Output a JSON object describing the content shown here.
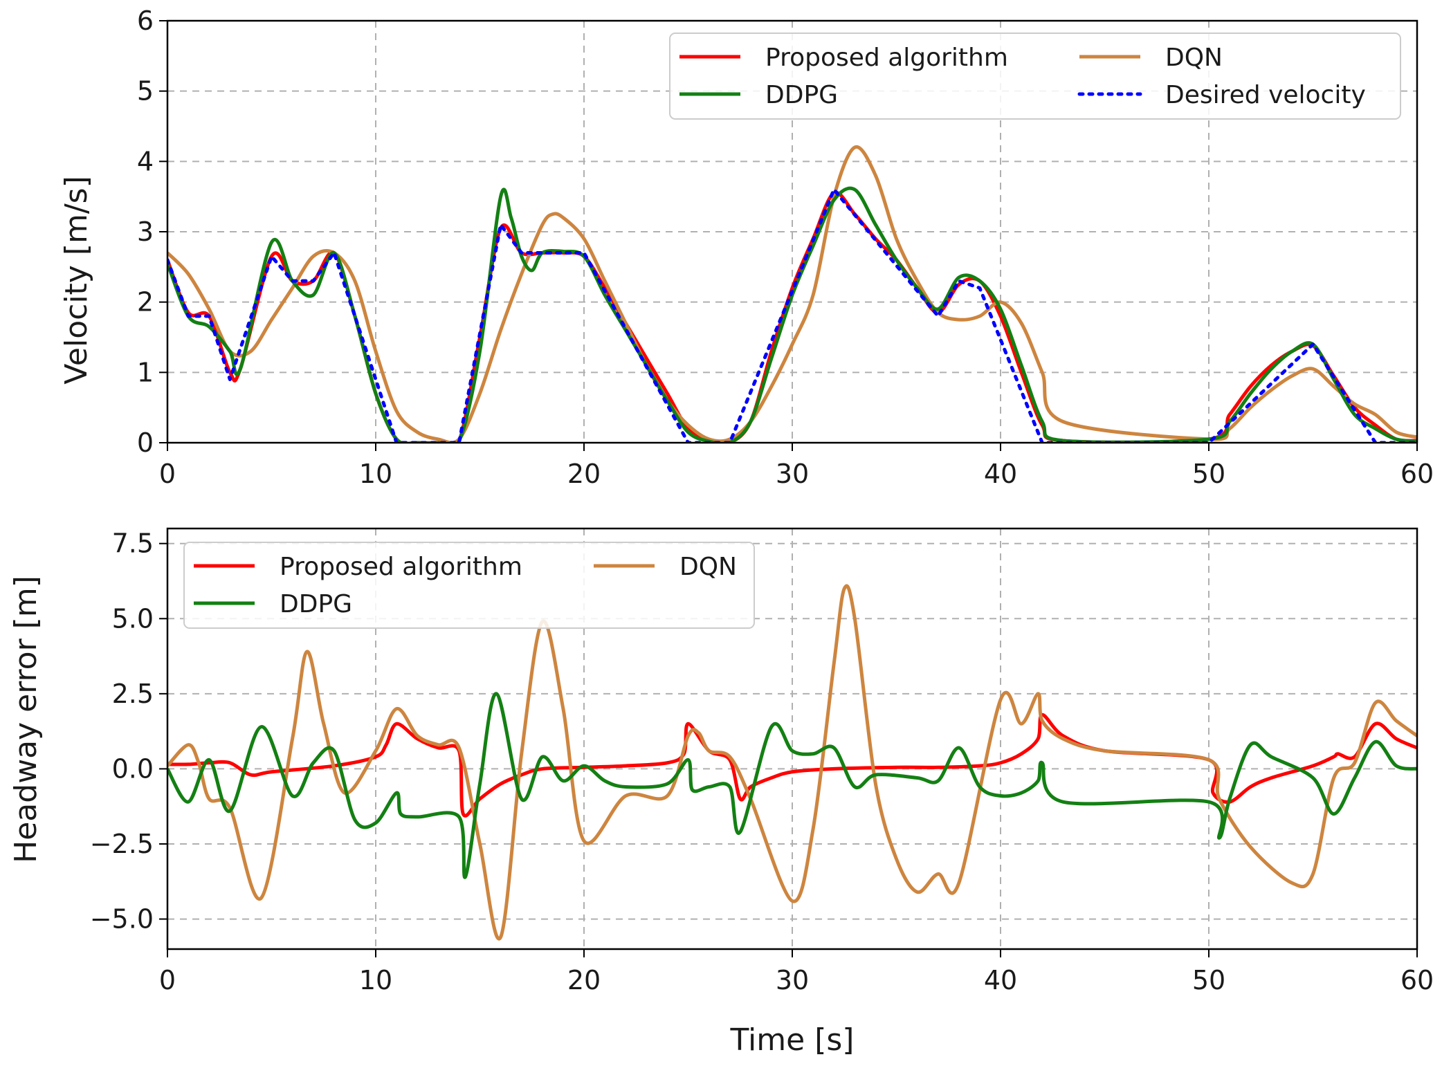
{
  "chart_data": [
    {
      "type": "line",
      "ylabel": "Velocity [m/s]",
      "xlabel": "",
      "xlim": [
        0,
        60
      ],
      "ylim": [
        0,
        6
      ],
      "xticks": [
        "0",
        "10",
        "20",
        "30",
        "40",
        "50",
        "60"
      ],
      "yticks": [
        "0",
        "1",
        "2",
        "3",
        "4",
        "5",
        "6"
      ],
      "grid": true,
      "legend_position": "top-right",
      "series": [
        {
          "name": "Proposed algorithm",
          "color": "#ff0000",
          "style": "solid",
          "x": [
            0,
            1,
            2,
            3,
            3.5,
            5,
            6,
            7,
            8,
            9,
            10,
            11,
            12,
            13,
            14,
            15,
            16,
            17,
            18,
            19,
            20,
            21,
            22,
            23,
            24,
            25,
            26,
            27,
            28,
            29,
            30,
            31,
            32,
            33,
            34,
            35,
            36,
            37,
            38,
            39,
            40,
            41,
            42,
            43,
            50,
            51,
            52,
            53,
            54,
            55,
            56,
            57,
            58,
            59,
            60
          ],
          "y": [
            2.6,
            1.85,
            1.8,
            1.0,
            1.05,
            2.65,
            2.3,
            2.3,
            2.7,
            1.8,
            0.7,
            0.05,
            0,
            0,
            0.02,
            1.5,
            3.05,
            2.7,
            2.7,
            2.7,
            2.65,
            2.2,
            1.7,
            1.2,
            0.7,
            0.2,
            0.03,
            0,
            0.3,
            1.3,
            2.2,
            2.9,
            3.55,
            3.25,
            2.9,
            2.6,
            2.2,
            1.85,
            2.25,
            2.3,
            1.8,
            1.0,
            0.25,
            0.03,
            0.05,
            0.4,
            0.8,
            1.1,
            1.3,
            1.38,
            0.95,
            0.5,
            0.25,
            0.05,
            0.03
          ]
        },
        {
          "name": "DQN",
          "color": "#cd853f",
          "style": "solid",
          "x": [
            0,
            1,
            2,
            3,
            4,
            5,
            6,
            7,
            8,
            9,
            10,
            11,
            12,
            13,
            14,
            15,
            16,
            17,
            18,
            18.5,
            19,
            20,
            21,
            22,
            23,
            24,
            25,
            26,
            27,
            28,
            29,
            30,
            31,
            32,
            33,
            34,
            35,
            36,
            37,
            38,
            39,
            40,
            41,
            42,
            43,
            50,
            51,
            52,
            53,
            54,
            55,
            56,
            57,
            58,
            59,
            60
          ],
          "y": [
            2.7,
            2.4,
            1.9,
            1.3,
            1.3,
            1.75,
            2.2,
            2.65,
            2.7,
            2.3,
            1.3,
            0.45,
            0.15,
            0.05,
            0.05,
            0.7,
            1.6,
            2.4,
            3.1,
            3.25,
            3.2,
            2.9,
            2.3,
            1.7,
            1.1,
            0.6,
            0.25,
            0.05,
            0.05,
            0.3,
            0.8,
            1.4,
            2.1,
            3.5,
            4.2,
            3.8,
            2.9,
            2.3,
            1.85,
            1.75,
            1.8,
            2.0,
            1.7,
            1.0,
            0.3,
            0.05,
            0.2,
            0.5,
            0.75,
            0.95,
            1.05,
            0.8,
            0.55,
            0.4,
            0.15,
            0.08
          ]
        },
        {
          "name": "DDPG",
          "color": "#138013",
          "style": "solid",
          "x": [
            0,
            1,
            2,
            3,
            3.5,
            5,
            6,
            7,
            8,
            9,
            10,
            11,
            12,
            13,
            14,
            15,
            16,
            16.5,
            17,
            17.5,
            18,
            19,
            20,
            21,
            22,
            23,
            24,
            25,
            26,
            27,
            28,
            29,
            30,
            31,
            32,
            33,
            34,
            35,
            36,
            37,
            38,
            39,
            40,
            41,
            42,
            43,
            50,
            51,
            52,
            53,
            54,
            55,
            56,
            57,
            58,
            59,
            60
          ],
          "y": [
            2.55,
            1.8,
            1.65,
            1.3,
            1.05,
            2.85,
            2.3,
            2.1,
            2.7,
            1.8,
            0.7,
            0.05,
            0,
            0,
            0.02,
            1.3,
            3.5,
            3.2,
            2.65,
            2.45,
            2.7,
            2.72,
            2.65,
            2.1,
            1.6,
            1.1,
            0.6,
            0.15,
            0.02,
            0,
            0.3,
            1.2,
            2.1,
            2.8,
            3.45,
            3.6,
            3.1,
            2.6,
            2.2,
            1.9,
            2.35,
            2.3,
            1.9,
            1.1,
            0.3,
            0.03,
            0.05,
            0.3,
            0.7,
            1.05,
            1.3,
            1.4,
            0.9,
            0.4,
            0.2,
            0.05,
            0.02
          ]
        },
        {
          "name": "Desired velocity",
          "color": "#0000ff",
          "style": "dotted",
          "x": [
            0,
            1,
            2,
            3,
            5,
            6,
            7,
            8,
            11,
            14,
            16,
            17,
            20,
            25,
            27,
            32,
            37,
            38,
            39,
            42,
            50,
            55,
            58,
            60
          ],
          "y": [
            2.6,
            1.8,
            1.8,
            0.9,
            2.65,
            2.3,
            2.3,
            2.7,
            0,
            0,
            3.1,
            2.7,
            2.7,
            0,
            0,
            3.6,
            1.8,
            2.3,
            2.2,
            0,
            0,
            1.4,
            0,
            0
          ]
        }
      ]
    },
    {
      "type": "line",
      "ylabel": "Headway error [m]",
      "xlabel": "Time [s]",
      "xlim": [
        0,
        60
      ],
      "ylim": [
        -6,
        8
      ],
      "xticks": [
        "0",
        "10",
        "20",
        "30",
        "40",
        "50",
        "60"
      ],
      "yticks": [
        "7.5",
        "5.0",
        "2.5",
        "0.0",
        "−2.5",
        "−5.0"
      ],
      "ytick_values": [
        7.5,
        5.0,
        2.5,
        0.0,
        -2.5,
        -5.0
      ],
      "grid": true,
      "legend_position": "top-left",
      "series": [
        {
          "name": "Proposed algorithm",
          "color": "#ff0000",
          "style": "solid",
          "x": [
            0,
            1,
            2,
            3,
            4,
            5,
            8,
            10,
            10.5,
            11,
            12,
            13,
            14,
            14.2,
            15,
            16,
            17,
            18,
            20,
            22,
            24,
            24.8,
            25,
            26,
            27,
            27.5,
            28,
            29,
            30,
            32,
            35,
            37,
            39,
            40,
            41,
            41.8,
            42,
            43,
            45,
            50,
            50.2,
            51,
            52,
            53,
            55,
            56,
            56.2,
            57,
            58,
            59,
            60
          ],
          "y": [
            0.15,
            0.15,
            0.2,
            0.2,
            -0.2,
            -0.1,
            0.1,
            0.4,
            0.8,
            1.5,
            1.0,
            0.7,
            0.6,
            -1.5,
            -1.0,
            -0.5,
            -0.2,
            0,
            0.05,
            0.1,
            0.2,
            0.5,
            1.5,
            0.6,
            0.3,
            -1.0,
            -0.6,
            -0.3,
            -0.1,
            0.0,
            0.05,
            0.05,
            0.1,
            0.2,
            0.5,
            1.0,
            1.8,
            1.1,
            0.6,
            0.3,
            -0.8,
            -1.1,
            -0.6,
            -0.3,
            0.1,
            0.4,
            0.5,
            0.4,
            1.5,
            1.0,
            0.7
          ]
        },
        {
          "name": "DQN",
          "color": "#cd853f",
          "style": "solid",
          "x": [
            0,
            1,
            1.5,
            2,
            3,
            4.5,
            6,
            6.7,
            7.5,
            8.5,
            10,
            11,
            12,
            13,
            14,
            15,
            16,
            17,
            18,
            19,
            20,
            22,
            24,
            25,
            25.5,
            26,
            27,
            28,
            30,
            31,
            32,
            32.5,
            33,
            34,
            35,
            36,
            37,
            38,
            40,
            41,
            41.8,
            42,
            43,
            45,
            50,
            50.5,
            52,
            54,
            55,
            56,
            57,
            58,
            59,
            60
          ],
          "y": [
            0.1,
            0.8,
            0.2,
            -1.0,
            -1.3,
            -4.3,
            1.0,
            3.9,
            1.5,
            -0.8,
            0.6,
            2.0,
            1.1,
            0.8,
            0.7,
            -2.5,
            -5.6,
            0.5,
            4.9,
            2.0,
            -2.4,
            -0.9,
            -0.9,
            1.1,
            1.2,
            0.6,
            0.4,
            -1.0,
            -4.4,
            -2.0,
            3.5,
            6.0,
            5.0,
            -0.5,
            -3.0,
            -4.1,
            -3.5,
            -3.8,
            2.3,
            1.5,
            2.5,
            1.6,
            1.0,
            0.6,
            0.3,
            -1.0,
            -2.6,
            -3.8,
            -3.5,
            -0.3,
            0.2,
            2.2,
            1.6,
            1.1
          ]
        },
        {
          "name": "DDPG",
          "color": "#138013",
          "style": "solid",
          "x": [
            0,
            1,
            2,
            3,
            4.5,
            6,
            7,
            8,
            9,
            10,
            11,
            11.2,
            12,
            14,
            14.3,
            15,
            15.8,
            17,
            18,
            19,
            20,
            21,
            22,
            24,
            25,
            25.2,
            26,
            27,
            27.5,
            29,
            30,
            31,
            32,
            33,
            34,
            36,
            37,
            38,
            39,
            40,
            41,
            41.8,
            42,
            43,
            50,
            50.5,
            51,
            52,
            53,
            55,
            56,
            57,
            58,
            59,
            60
          ],
          "y": [
            0.0,
            -1.1,
            0.3,
            -1.4,
            1.4,
            -0.9,
            0.2,
            0.6,
            -1.7,
            -1.8,
            -0.8,
            -1.5,
            -1.6,
            -1.6,
            -3.6,
            -0.5,
            2.5,
            -1.0,
            0.4,
            -0.4,
            0.1,
            -0.4,
            -0.6,
            -0.5,
            0.3,
            -0.7,
            -0.6,
            -0.6,
            -2.1,
            1.4,
            0.6,
            0.5,
            0.7,
            -0.6,
            -0.2,
            -0.3,
            -0.4,
            0.7,
            -0.6,
            -0.9,
            -0.8,
            -0.4,
            0.2,
            -1.1,
            -1.1,
            -2.3,
            -1.0,
            0.8,
            0.4,
            -0.3,
            -1.5,
            -0.3,
            0.9,
            0.1,
            0.0
          ]
        }
      ]
    }
  ]
}
